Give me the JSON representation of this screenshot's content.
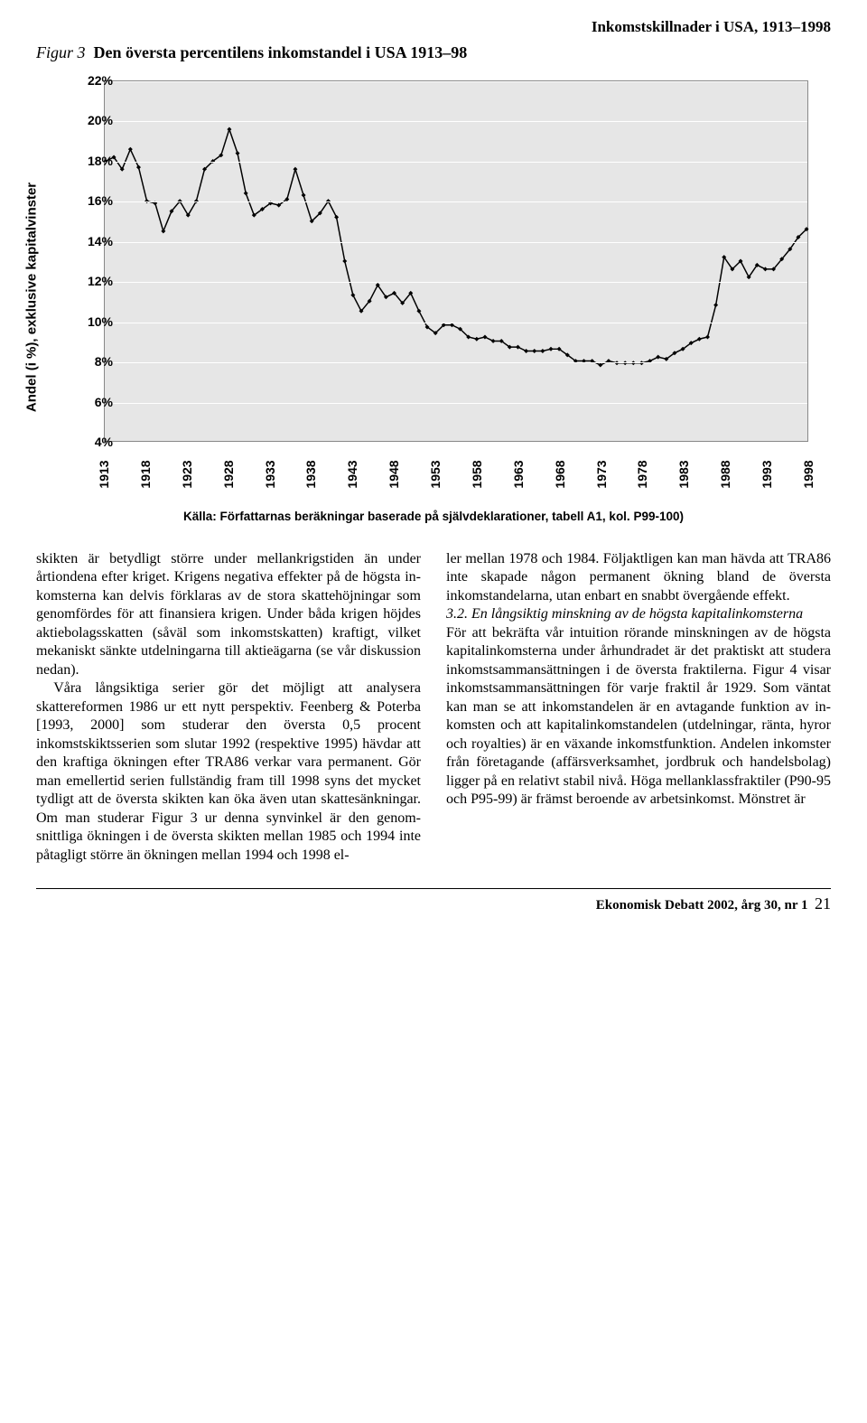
{
  "header": {
    "running_title": "Inkomstskillnader i USA, 1913–1998"
  },
  "figure": {
    "number": "Figur 3",
    "title": "Den översta percentilens inkomstandel i USA 1913–98",
    "y_axis_label": "Andel (i %), exklusive kapitalvinster",
    "source": "Källa: Författarnas beräkningar baserade på självdeklarationer, tabell A1, kol. P99-100)"
  },
  "chart": {
    "type": "line",
    "y_min": 4,
    "y_max": 22,
    "y_step": 2,
    "y_ticks": [
      "4%",
      "6%",
      "8%",
      "10%",
      "12%",
      "14%",
      "16%",
      "18%",
      "20%",
      "22%"
    ],
    "x_min": 1913,
    "x_max": 1998,
    "x_step": 5,
    "x_ticks": [
      "1913",
      "1918",
      "1923",
      "1928",
      "1933",
      "1938",
      "1943",
      "1948",
      "1953",
      "1958",
      "1963",
      "1968",
      "1973",
      "1978",
      "1983",
      "1988",
      "1993",
      "1998"
    ],
    "line_color": "#000000",
    "marker": "diamond",
    "marker_size": 5,
    "line_width": 1.5,
    "background_color": "#e6e6e6",
    "grid_color": "#ffffff",
    "axis_fontsize": 14,
    "years": [
      1913,
      1914,
      1915,
      1916,
      1917,
      1918,
      1919,
      1920,
      1921,
      1922,
      1923,
      1924,
      1925,
      1926,
      1927,
      1928,
      1929,
      1930,
      1931,
      1932,
      1933,
      1934,
      1935,
      1936,
      1937,
      1938,
      1939,
      1940,
      1941,
      1942,
      1943,
      1944,
      1945,
      1946,
      1947,
      1948,
      1949,
      1950,
      1951,
      1952,
      1953,
      1954,
      1955,
      1956,
      1957,
      1958,
      1959,
      1960,
      1961,
      1962,
      1963,
      1964,
      1965,
      1966,
      1967,
      1968,
      1969,
      1970,
      1971,
      1972,
      1973,
      1974,
      1975,
      1976,
      1977,
      1978,
      1979,
      1980,
      1981,
      1982,
      1983,
      1984,
      1985,
      1986,
      1987,
      1988,
      1989,
      1990,
      1991,
      1992,
      1993,
      1994,
      1995,
      1996,
      1997,
      1998
    ],
    "values": [
      18.0,
      18.2,
      17.6,
      18.6,
      17.7,
      16.0,
      15.9,
      14.5,
      15.5,
      16.0,
      15.3,
      16.0,
      17.6,
      18.0,
      18.3,
      19.6,
      18.4,
      16.4,
      15.3,
      15.6,
      15.9,
      15.8,
      16.1,
      17.6,
      16.3,
      15.0,
      15.4,
      16.0,
      15.2,
      13.0,
      11.3,
      10.5,
      11.0,
      11.8,
      11.2,
      11.4,
      10.9,
      11.4,
      10.5,
      9.7,
      9.4,
      9.8,
      9.8,
      9.6,
      9.2,
      9.1,
      9.2,
      9.0,
      9.0,
      8.7,
      8.7,
      8.5,
      8.5,
      8.5,
      8.6,
      8.6,
      8.3,
      8.0,
      8.0,
      8.0,
      7.8,
      8.0,
      7.9,
      7.9,
      7.9,
      7.9,
      8.0,
      8.2,
      8.1,
      8.4,
      8.6,
      8.9,
      9.1,
      9.2,
      10.8,
      13.2,
      12.6,
      13.0,
      12.2,
      12.8,
      12.6,
      12.6,
      13.1,
      13.6,
      14.2,
      14.6
    ]
  },
  "body": {
    "col1_p1": "skikten är betydligt större under mellan­krigstiden än under årtiondena efter kriget. Krigens negativa effekter på de högsta in­komsterna kan delvis förklaras av de stora skattehöjningar som genomfördes för att finansiera krigen. Under båda krigen höj­des aktiebolagsskatten (såväl som in­komstskatten) kraftigt, vilket mekaniskt sänkte utdelningarna till aktieägarna (se vår diskussion nedan).",
    "col1_p2": "Våra långsiktiga serier gör det möjligt att analysera skattereformen 1986 ur ett nytt perspektiv. Feenberg & Poterba [1993, 2000] som studerar den översta 0,5 procent inkomstskiktsserien som slu­tar 1992 (respektive 1995) hävdar att den kraftiga ökningen efter TRA86 verkar va­ra permanent. Gör man emellertid serien fullständig fram till 1998 syns det mycket tydligt att de översta skikten kan öka även utan skattesänkningar. Om man studerar Figur 3 ur denna synvinkel är den genom­snittliga ökningen i de översta skikten mellan 1985 och 1994 inte påtagligt stör­re än ökningen mellan 1994 och 1998 el-",
    "col2_p1": "ler mellan 1978 och 1984. Följaktligen kan man hävda att TRA86 inte skapade någon permanent ökning bland de översta inkomstandelarna, utan enbart en snabbt övergående effekt.",
    "section_head": "3.2. En långsiktig minskning av de högsta kapitalinkomsterna",
    "col2_p2": "För att bekräfta vår intuition rörande minskningen av de högsta kapitalinkom­sterna under århundradet är det praktiskt att studera inkomstsammansättningen i de översta fraktilerna. Figur 4 visar inkomst­sammansättningen för varje fraktil år 1929. Som väntat kan man se att inkomst­andelen är en avtagande funktion av in­komsten och att kapitalinkomstandelen (utdelningar, ränta, hyror och royalties) är en växande inkomstfunktion. Andelen in­komster från företagande (affärsverksam­het, jordbruk och handelsbolag) ligger på en relativt stabil nivå. Höga mellanklass­fraktiler (P90-95 och P95-99) är främst beroende av arbetsinkomst. Mönstret är"
  },
  "footer": {
    "journal": "Ekonomisk Debatt 2002, årg 30, nr 1",
    "page": "21"
  }
}
